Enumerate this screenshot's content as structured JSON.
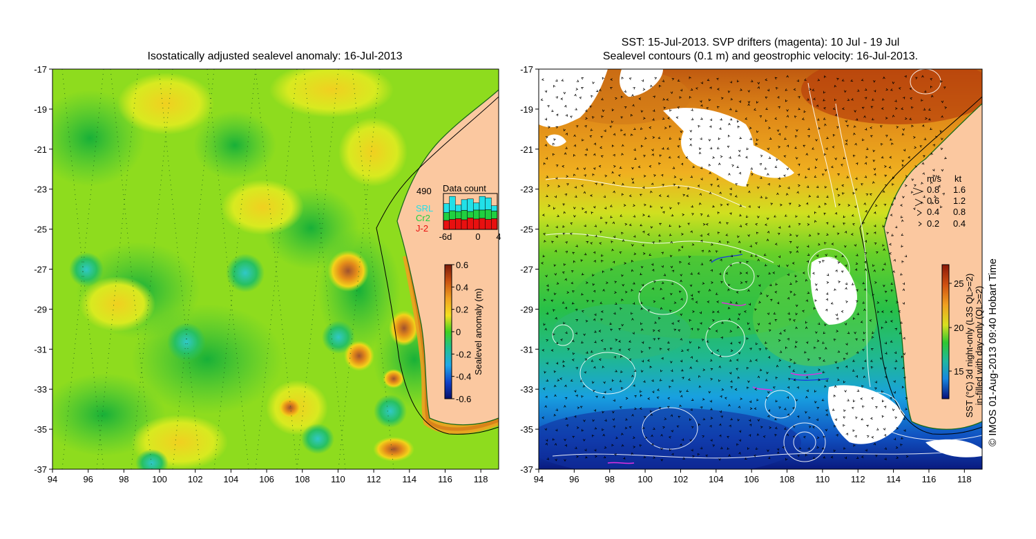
{
  "left_panel": {
    "title": "Isostatically adjusted sealevel anomaly: 16-Jul-2013",
    "x_ticks": [
      "94",
      "96",
      "98",
      "100",
      "102",
      "104",
      "106",
      "108",
      "110",
      "112",
      "114",
      "116",
      "118"
    ],
    "y_ticks": [
      "-17",
      "-19",
      "-21",
      "-23",
      "-25",
      "-27",
      "-29",
      "-31",
      "-33",
      "-35",
      "-37"
    ],
    "colorbar": {
      "label": "Sealevel anomaly (m)",
      "ticks": [
        "0.6",
        "0.4",
        "0.2",
        "0",
        "-0.2",
        "-0.4",
        "-0.6"
      ],
      "range": [
        -0.6,
        0.6
      ]
    },
    "data_count": {
      "title": "Data count",
      "max_label": "490",
      "legend": [
        {
          "label": "SRL",
          "color": "#22e0e8"
        },
        {
          "label": "Cr2",
          "color": "#20d040"
        },
        {
          "label": "J-2",
          "color": "#e81010"
        }
      ],
      "x_ticks": [
        "-6d",
        "0",
        "4"
      ],
      "bars": {
        "j2": [
          0.25,
          0.28,
          0.3,
          0.27,
          0.32,
          0.29,
          0.31,
          0.28,
          0.3
        ],
        "cr2": [
          0.22,
          0.24,
          0.2,
          0.26,
          0.18,
          0.25,
          0.23,
          0.27,
          0.21
        ],
        "srl": [
          0.25,
          0.4,
          0.18,
          0.3,
          0.35,
          0.2,
          0.38,
          0.33,
          0.15
        ]
      }
    }
  },
  "right_panel": {
    "title_line1": "SST: 15-Jul-2013. SVP drifters (magenta): 10 Jul - 19 Jul",
    "title_line2": "Sealevel contours (0.1 m) and geostrophic velocity: 16-Jul-2013.",
    "x_ticks": [
      "94",
      "96",
      "98",
      "100",
      "102",
      "104",
      "106",
      "108",
      "110",
      "112",
      "114",
      "116",
      "118"
    ],
    "y_ticks": [
      "-17",
      "-19",
      "-21",
      "-23",
      "-25",
      "-27",
      "-29",
      "-31",
      "-33",
      "-35",
      "-37"
    ],
    "velocity_legend": {
      "header_ms": "m/s",
      "header_kt": "kt",
      "rows": [
        {
          "ms": "0.8",
          "kt": "1.6"
        },
        {
          "ms": "0.6",
          "kt": "1.2"
        },
        {
          "ms": "0.4",
          "kt": "0.8"
        },
        {
          "ms": "0.2",
          "kt": "0.4"
        }
      ]
    },
    "colorbar": {
      "label_line1": "SST (°C) 3d night-only (L3S QL>=2)",
      "label_line2": "in-filled with day-only (QL>=2)",
      "ticks": [
        "25",
        "20",
        "15"
      ]
    }
  },
  "credit": "© IMOS 01-Aug-2013 09:40 Hobart Time"
}
